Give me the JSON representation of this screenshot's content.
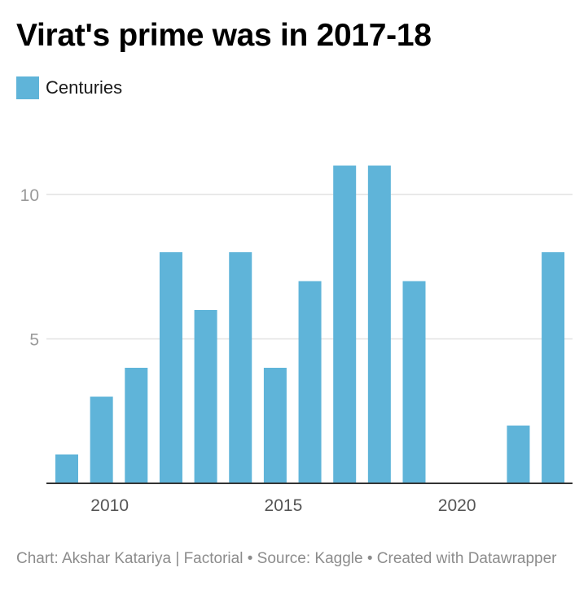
{
  "chart_data": {
    "type": "bar",
    "title": "Virat's prime was in 2017-18",
    "legend": [
      {
        "name": "Centuries",
        "color": "#5fb4d9"
      }
    ],
    "legend_placement": "top-left",
    "x": [
      2009,
      2010,
      2011,
      2012,
      2013,
      2014,
      2015,
      2016,
      2017,
      2018,
      2019,
      2020,
      2021,
      2022,
      2023
    ],
    "series": [
      {
        "name": "Centuries",
        "values": [
          1,
          3,
          4,
          8,
          6,
          8,
          4,
          7,
          11,
          11,
          7,
          0,
          0,
          2,
          8
        ]
      }
    ],
    "x_ticks": [
      "2010",
      "2015",
      "2020"
    ],
    "y_ticks": [
      "5",
      "10"
    ],
    "ylim": [
      0,
      11
    ],
    "grid": "horizontal",
    "bar_color": "#5fb4d9"
  },
  "footer": {
    "source": "Chart: Akshar Katariya | Factorial • Source: Kaggle • Created with Datawrapper"
  }
}
